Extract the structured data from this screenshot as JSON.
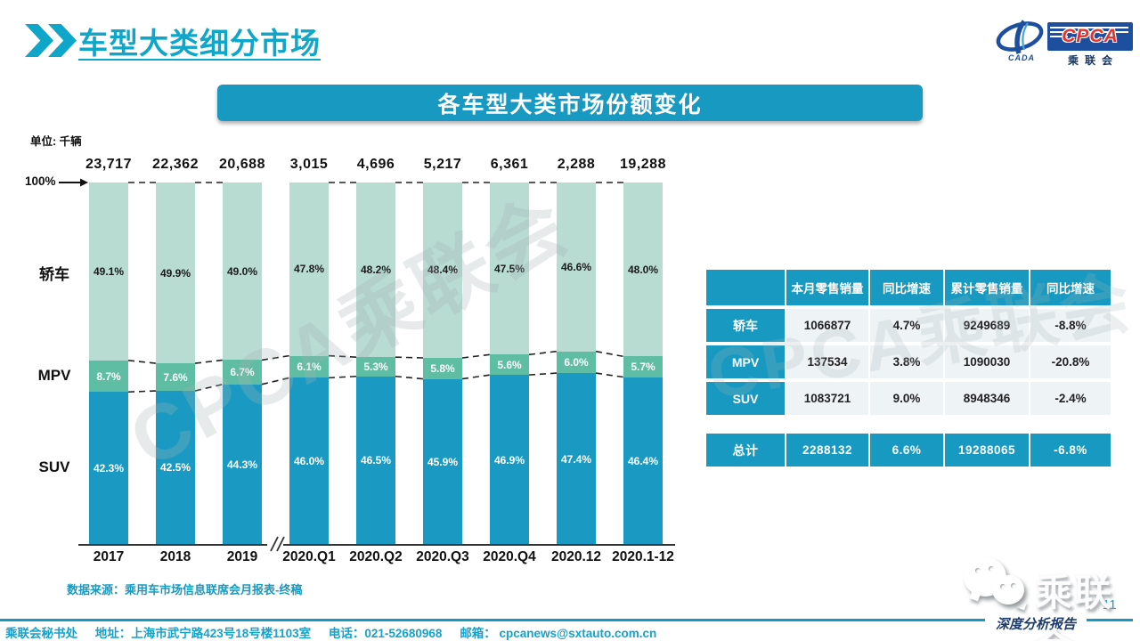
{
  "header": {
    "title": "车型大类细分市场",
    "logo": {
      "cpca": "CPCA",
      "cada": "CADA",
      "sub": "乘联会"
    }
  },
  "banner": {
    "text": "各车型大类市场份额变化"
  },
  "chart_data": {
    "type": "stacked-bar",
    "title": "各车型大类市场份额变化",
    "unit_label": "单位: 千辆",
    "top_axis_label": "100%",
    "categories": [
      "2017",
      "2018",
      "2019",
      "2020.Q1",
      "2020.Q2",
      "2020.Q3",
      "2020.Q4",
      "2020.12",
      "2020.1-12"
    ],
    "totals": [
      "23,717",
      "22,362",
      "20,688",
      "3,015",
      "4,696",
      "5,217",
      "6,361",
      "2,288",
      "19,288"
    ],
    "series": [
      {
        "name": "轿车",
        "color": "#b8dcd2",
        "label_color": "#1a1a1a",
        "values": [
          49.1,
          49.9,
          49.0,
          47.8,
          48.2,
          48.4,
          47.5,
          46.6,
          48.0
        ]
      },
      {
        "name": "MPV",
        "color": "#5fbda3",
        "label_color": "#ffffff",
        "values": [
          8.7,
          7.6,
          6.7,
          6.1,
          5.3,
          5.8,
          5.6,
          6.0,
          5.7
        ]
      },
      {
        "name": "SUV",
        "color": "#1a9ac2",
        "label_color": "#ffffff",
        "values": [
          42.3,
          42.5,
          44.3,
          46.0,
          46.5,
          45.9,
          46.9,
          47.4,
          46.4
        ]
      }
    ],
    "axis_break_between": [
      "2019",
      "2020.Q1"
    ],
    "ylim": [
      0,
      100
    ],
    "legend_position": "left-row-labels",
    "source": "数据来源：乘用车市场信息联席会月报表-终稿"
  },
  "table": {
    "headers": [
      "",
      "本月零售销量",
      "同比增速",
      "累计零售销量",
      "同比增速"
    ],
    "rows": [
      {
        "label": "轿车",
        "values": [
          "1066877",
          "4.7%",
          "9249689",
          "-8.8%"
        ],
        "is_total": false
      },
      {
        "label": "MPV",
        "values": [
          "137534",
          "3.8%",
          "1090030",
          "-20.8%"
        ],
        "is_total": false
      },
      {
        "label": "SUV",
        "values": [
          "1083721",
          "9.0%",
          "8948346",
          "-2.4%"
        ],
        "is_total": false
      },
      {
        "label": "总计",
        "values": [
          "2288132",
          "6.6%",
          "19288065",
          "-6.8%"
        ],
        "is_total": true
      }
    ]
  },
  "watermark": {
    "text": "CPCA乘联会"
  },
  "footer": {
    "secretariat": "乘联会秘书处",
    "address": "地址：上海市武宁路423号18号楼1103室",
    "phone": "电话：021-52680968",
    "email_label": "邮箱：",
    "email": "cpcanews@sxtauto.com.cn",
    "page_number": "11",
    "report_tag": "深度分析报告",
    "wechat_label": "乘联会"
  },
  "colors": {
    "accent_teal": "#1899c1",
    "title_teal": "#0ea6c9",
    "sedan_light_green": "#b8dcd2",
    "mpv_green": "#5fbda3",
    "suv_teal": "#1a9ac2",
    "logo_navy": "#1e4f9e",
    "logo_red": "#e8312a"
  }
}
